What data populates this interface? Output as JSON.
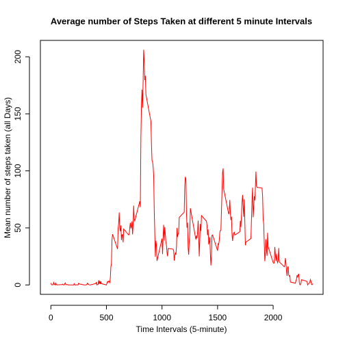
{
  "chart_data": {
    "type": "line",
    "title": "Average number of Steps Taken at different 5 minute Intervals",
    "x_label": "Time Intervals (5-minute)",
    "y_label": "Mean number of steps taken (all Days)",
    "color": "#ff0000",
    "xlim": [
      -94.2,
      2449.2
    ],
    "xticks": [
      0,
      500,
      1000,
      1500,
      2000
    ],
    "ylim": [
      -8.25,
      214.4
    ],
    "yticks": [
      0,
      50,
      100,
      150,
      200
    ],
    "x": [
      0,
      5,
      10,
      15,
      20,
      25,
      30,
      35,
      40,
      45,
      50,
      55,
      100,
      105,
      110,
      115,
      120,
      125,
      130,
      135,
      140,
      145,
      150,
      155,
      200,
      205,
      210,
      215,
      220,
      225,
      230,
      235,
      240,
      245,
      250,
      255,
      300,
      305,
      310,
      315,
      320,
      325,
      330,
      335,
      340,
      345,
      350,
      355,
      400,
      405,
      410,
      415,
      420,
      425,
      430,
      435,
      440,
      445,
      450,
      455,
      500,
      505,
      510,
      515,
      520,
      525,
      530,
      535,
      540,
      545,
      550,
      555,
      600,
      605,
      610,
      615,
      620,
      625,
      630,
      635,
      640,
      645,
      650,
      655,
      700,
      705,
      710,
      715,
      720,
      725,
      730,
      735,
      740,
      745,
      750,
      755,
      800,
      805,
      810,
      815,
      820,
      825,
      830,
      835,
      840,
      845,
      850,
      855,
      900,
      905,
      910,
      915,
      920,
      925,
      930,
      935,
      940,
      945,
      950,
      955,
      1000,
      1005,
      1010,
      1015,
      1020,
      1025,
      1030,
      1035,
      1040,
      1045,
      1050,
      1055,
      1100,
      1105,
      1110,
      1115,
      1120,
      1125,
      1130,
      1135,
      1140,
      1145,
      1150,
      1155,
      1200,
      1205,
      1210,
      1215,
      1220,
      1225,
      1230,
      1235,
      1240,
      1245,
      1250,
      1255,
      1300,
      1305,
      1310,
      1315,
      1320,
      1325,
      1330,
      1335,
      1340,
      1345,
      1350,
      1355,
      1400,
      1405,
      1410,
      1415,
      1420,
      1425,
      1430,
      1435,
      1440,
      1445,
      1450,
      1455,
      1500,
      1505,
      1510,
      1515,
      1520,
      1525,
      1530,
      1535,
      1540,
      1545,
      1550,
      1555,
      1600,
      1605,
      1610,
      1615,
      1620,
      1625,
      1630,
      1635,
      1640,
      1645,
      1650,
      1655,
      1700,
      1705,
      1710,
      1715,
      1720,
      1725,
      1730,
      1735,
      1740,
      1745,
      1750,
      1755,
      1800,
      1805,
      1810,
      1815,
      1820,
      1825,
      1830,
      1835,
      1840,
      1845,
      1850,
      1855,
      1900,
      1905,
      1910,
      1915,
      1920,
      1925,
      1930,
      1935,
      1940,
      1945,
      1950,
      1955,
      2000,
      2005,
      2010,
      2015,
      2020,
      2025,
      2030,
      2035,
      2040,
      2045,
      2050,
      2055,
      2100,
      2105,
      2110,
      2115,
      2120,
      2125,
      2130,
      2135,
      2140,
      2145,
      2150,
      2155,
      2200,
      2205,
      2210,
      2215,
      2220,
      2225,
      2230,
      2235,
      2240,
      2245,
      2250,
      2255,
      2300,
      2305,
      2310,
      2315,
      2320,
      2325,
      2330,
      2335,
      2340,
      2345,
      2350,
      2355
    ],
    "values": [
      1.7,
      0.3,
      0.1,
      0.2,
      0.1,
      2.1,
      0.5,
      0.9,
      0,
      1.5,
      0.3,
      0.1,
      0.3,
      0.7,
      0.2,
      0.3,
      0,
      1.1,
      1.8,
      0.2,
      0.2,
      0.4,
      0.3,
      0,
      0,
      0,
      1.1,
      0,
      0,
      0.1,
      0,
      0.2,
      0,
      0,
      1.5,
      0.9,
      0,
      0,
      0,
      0,
      0.2,
      0.6,
      1.6,
      0.6,
      0.5,
      0.1,
      0,
      0,
      1.2,
      0.9,
      2.6,
      0,
      0.3,
      0.4,
      4.1,
      0.7,
      3.5,
      0.8,
      3.1,
      1.1,
      0,
      1.6,
      3,
      2.2,
      3.3,
      3,
      2.1,
      6.1,
      16,
      18.3,
      39.5,
      44.5,
      31.5,
      49.3,
      53.8,
      63.5,
      50,
      47.1,
      52.2,
      39.3,
      44,
      44.2,
      37.4,
      49,
      43.8,
      44.4,
      50.5,
      54.5,
      49.9,
      51,
      55.7,
      44.3,
      52.3,
      69.5,
      57.8,
      56.2,
      73.4,
      68.2,
      129.4,
      157.5,
      171.2,
      155.4,
      177.3,
      206.2,
      195.9,
      179.6,
      183.4,
      167,
      143.5,
      124,
      109.1,
      108.1,
      103.7,
      95.9,
      66.2,
      45.2,
      24.8,
      38.8,
      35,
      21.1,
      40.6,
      27,
      42.4,
      52.7,
      38.9,
      50.8,
      44.3,
      37.4,
      34.7,
      28.3,
      25.1,
      31.9,
      31.4,
      29.7,
      21.3,
      25.5,
      28.4,
      26.5,
      33.4,
      50,
      42,
      44.6,
      46,
      59.2,
      63.9,
      87.7,
      94.8,
      92.8,
      63.4,
      50.2,
      54.5,
      32.4,
      26.5,
      37.7,
      45.1,
      67.3,
      42.3,
      39.9,
      43.3,
      41,
      46.2,
      56.4,
      42.8,
      25.1,
      40,
      53.5,
      47.3,
      60.8,
      55.8,
      52,
      43.6,
      48.7,
      35.5,
      37.5,
      41.8,
      27.5,
      17.1,
      26.1,
      43.6,
      43.8,
      30,
      36.1,
      35.5,
      38.8,
      46,
      47.8,
      48.1,
      65.3,
      82.9,
      98.7,
      102.1,
      84,
      62.1,
      64.1,
      74.5,
      63.2,
      56.9,
      59.8,
      43.9,
      38.6,
      44.7,
      45.5,
      46.2,
      43.7,
      46.6,
      56.3,
      50.7,
      61.2,
      72.7,
      78.9,
      68.9,
      59.7,
      75.1,
      56.5,
      34.8,
      37.5,
      40.7,
      58,
      74.7,
      85.3,
      59.3,
      67.8,
      77.7,
      74.2,
      85.3,
      99.5,
      86.6,
      85.6,
      84.9,
      77.8,
      58,
      53.4,
      36.3,
      20.7,
      27.4,
      40,
      30.2,
      25.5,
      45.7,
      33.5,
      19.6,
      19,
      19.3,
      33.3,
      26.8,
      21.2,
      27.3,
      21.3,
      19.5,
      21.3,
      32.3,
      20.2,
      15.9,
      17.2,
      23.5,
      19.2,
      12.5,
      8,
      14.7,
      16.3,
      8.7,
      7.8,
      8.1,
      2.6,
      1.5,
      3.7,
      4.8,
      8.5,
      7.1,
      8.7,
      9.8,
      2.2,
      0.3,
      0.1,
      1.6,
      4.6,
      3.3,
      2.8,
      0,
      0.8,
      1,
      1.6,
      2.6,
      4.7,
      3.3,
      0.6,
      0.2,
      1.1
    ]
  }
}
